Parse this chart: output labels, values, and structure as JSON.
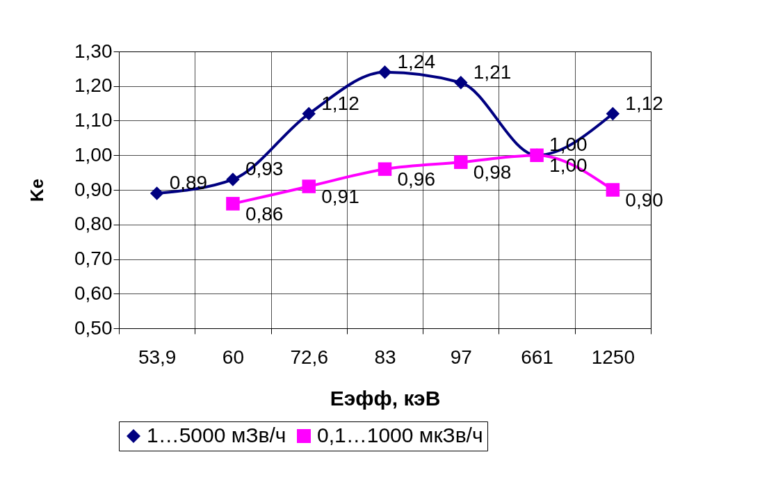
{
  "chart_data": {
    "type": "line",
    "xlabel": "Еэфф, кэВ",
    "ylabel": "Ke",
    "categories": [
      "53,9",
      "60",
      "72,6",
      "83",
      "97",
      "661",
      "1250"
    ],
    "series": [
      {
        "name": "1…5000 мЗв/ч",
        "color": "#000080",
        "marker": "diamond",
        "values": [
          0.89,
          0.93,
          1.12,
          1.24,
          1.21,
          1.0,
          1.12
        ],
        "value_labels": [
          "0,89",
          "0,93",
          "1,12",
          "1,24",
          "1,21",
          "1,00",
          "1,12"
        ]
      },
      {
        "name": "0,1…1000 мкЗв/ч",
        "color": "#ff00ff",
        "marker": "square",
        "values": [
          null,
          0.86,
          0.91,
          0.96,
          0.98,
          1.0,
          0.9
        ],
        "value_labels": [
          null,
          "0,86",
          "0,91",
          "0,96",
          "0,98",
          "1,00",
          "0,90"
        ]
      }
    ],
    "ylim": [
      0.5,
      1.3
    ],
    "yticks": [
      {
        "value": 0.5,
        "label": "0,50"
      },
      {
        "value": 0.6,
        "label": "0,60"
      },
      {
        "value": 0.7,
        "label": "0,70"
      },
      {
        "value": 0.8,
        "label": "0,80"
      },
      {
        "value": 0.9,
        "label": "0,90"
      },
      {
        "value": 1.0,
        "label": "1,00"
      },
      {
        "value": 1.1,
        "label": "1,10"
      },
      {
        "value": 1.2,
        "label": "1,20"
      },
      {
        "value": 1.3,
        "label": "1,30"
      }
    ],
    "grid": true,
    "legend": "bottom",
    "line_style": "solid"
  }
}
